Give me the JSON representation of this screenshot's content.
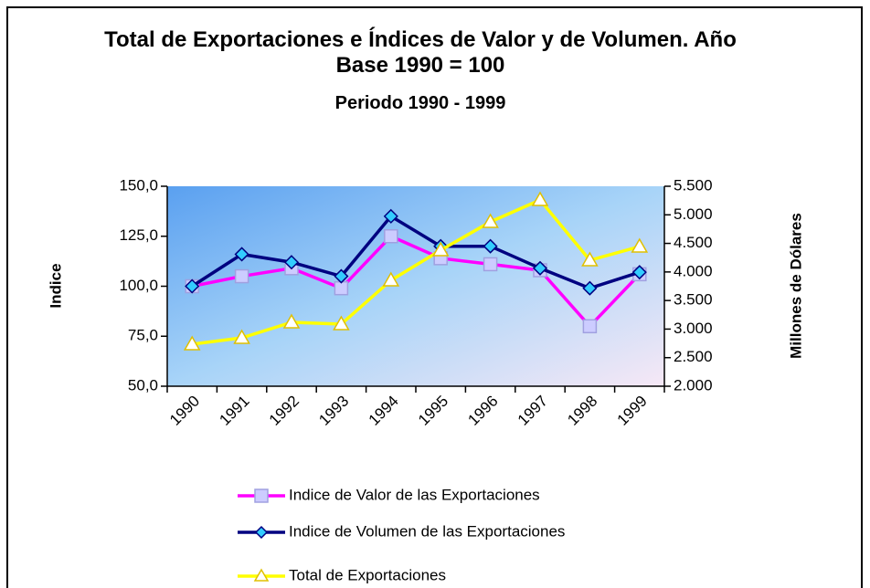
{
  "chart_data": {
    "type": "line",
    "title": "Total de Exportaciones e Índices de Valor y de Volumen. Año Base 1990 = 100",
    "subtitle": "Periodo 1990 - 1999",
    "ylabel": "Indice",
    "y2label": "Millones de Dólares",
    "categories": [
      "1990",
      "1991",
      "1992",
      "1993",
      "1994",
      "1995",
      "1996",
      "1997",
      "1998",
      "1999"
    ],
    "series": [
      {
        "name": "Indice de Valor de las Exportaciones",
        "color": "#ff00ff",
        "marker_color": "#ccccff",
        "marker": "square",
        "values": [
          100,
          105,
          109,
          99,
          125,
          114,
          111,
          108,
          80,
          106
        ]
      },
      {
        "name": "Indice de Volumen de las Exportaciones",
        "color": "#000080",
        "marker_color": "#33ccff",
        "marker": "diamond",
        "values": [
          100,
          116,
          112,
          105,
          135,
          120,
          120,
          109,
          99,
          107
        ]
      },
      {
        "name": "Total de Exportaciones",
        "color": "#ffff00",
        "marker_color": "#ffffff",
        "marker": "triangle",
        "axis": "y2",
        "values": [
          2735,
          2847,
          3119,
          3087,
          3854,
          4381,
          4877,
          5260,
          4205,
          4445
        ]
      }
    ],
    "ylim": [
      50,
      150
    ],
    "yticks": [
      {
        "value": 50,
        "label": "50,0"
      },
      {
        "value": 75,
        "label": "75,0"
      },
      {
        "value": 100,
        "label": "100,0"
      },
      {
        "value": 125,
        "label": "125,0"
      },
      {
        "value": 150,
        "label": "150,0"
      }
    ],
    "y2lim": [
      2000,
      5500
    ],
    "y2ticks": [
      {
        "value": 2000,
        "label": "2.000"
      },
      {
        "value": 2500,
        "label": "2.500"
      },
      {
        "value": 3000,
        "label": "3.000"
      },
      {
        "value": 3500,
        "label": "3.500"
      },
      {
        "value": 4000,
        "label": "4.000"
      },
      {
        "value": 4500,
        "label": "4.500"
      },
      {
        "value": 5000,
        "label": "5.000"
      },
      {
        "value": 5500,
        "label": "5.500"
      }
    ],
    "legend": "bottom"
  }
}
